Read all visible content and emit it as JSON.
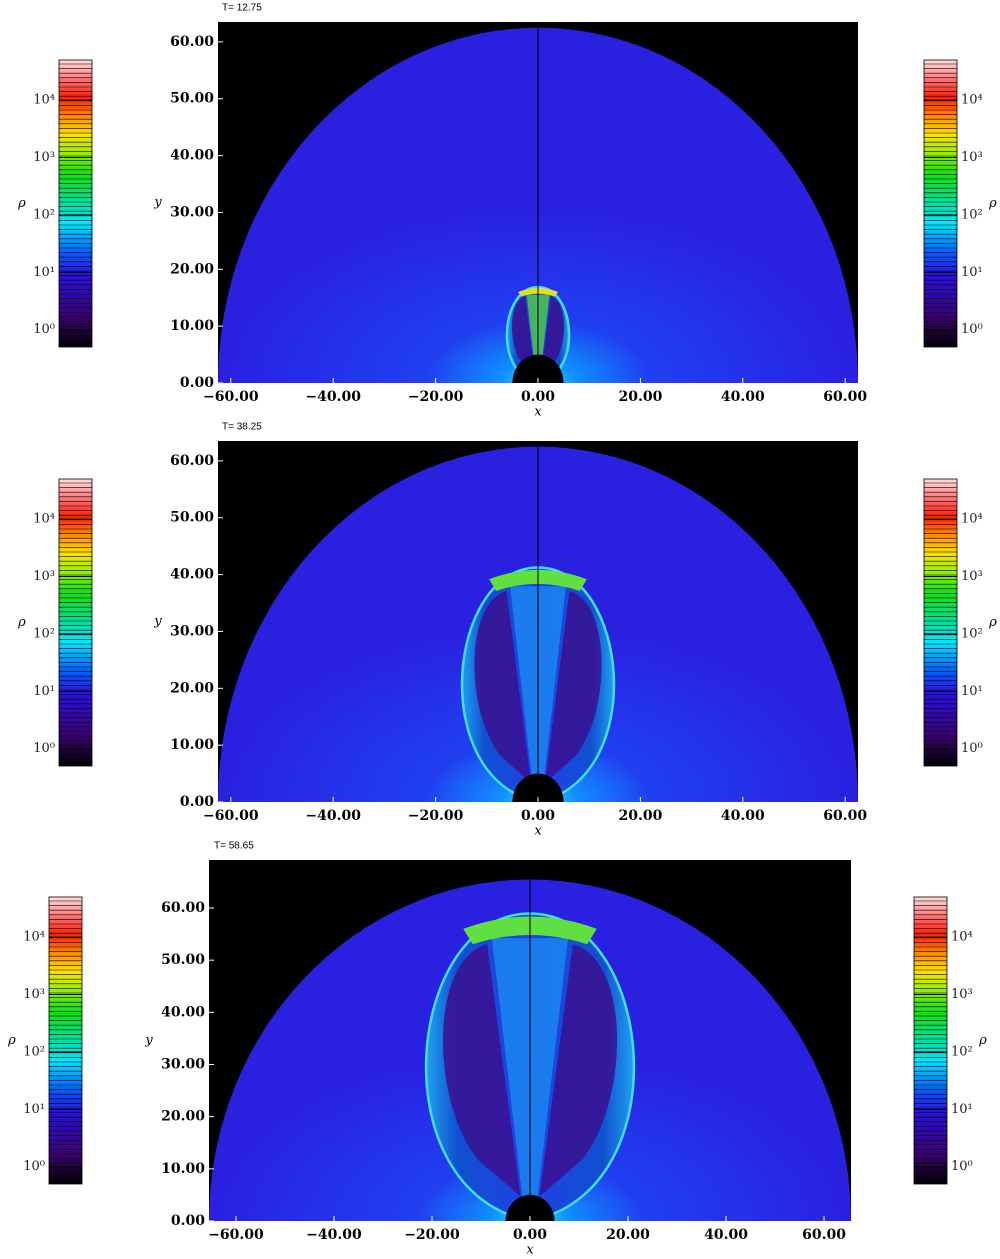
{
  "chart_data": [
    {
      "type": "heatmap",
      "title": "T= 12.75",
      "xlabel": "x",
      "ylabel": "y",
      "xlim": [
        -62.5,
        62.5
      ],
      "ylim": [
        0,
        63.5
      ],
      "xticks": [
        {
          "value": -60,
          "label": "−60.00"
        },
        {
          "value": -40,
          "label": "−40.00"
        },
        {
          "value": -20,
          "label": "−20.00"
        },
        {
          "value": 0,
          "label": "0.00"
        },
        {
          "value": 20,
          "label": "20.00"
        },
        {
          "value": 40,
          "label": "40.00"
        },
        {
          "value": 60,
          "label": "60.00"
        }
      ],
      "yticks": [
        {
          "value": 0,
          "label": "0.00"
        },
        {
          "value": 10,
          "label": "10.00"
        },
        {
          "value": 20,
          "label": "20.00"
        },
        {
          "value": 30,
          "label": "30.00"
        },
        {
          "value": 40,
          "label": "40.00"
        },
        {
          "value": 50,
          "label": "50.00"
        },
        {
          "value": 60,
          "label": "60.00"
        }
      ],
      "colorbar": {
        "label": "ρ",
        "scale": "log",
        "clim": [
          0.5,
          50000
        ],
        "ticks": [
          {
            "value": 1,
            "label": "10⁰"
          },
          {
            "value": 10,
            "label": "10¹"
          },
          {
            "value": 100,
            "label": "10²"
          },
          {
            "value": 1000,
            "label": "10³"
          },
          {
            "value": 10000,
            "label": "10⁴"
          }
        ]
      }
    },
    {
      "type": "heatmap",
      "title": "T= 38.25",
      "xlabel": "x",
      "ylabel": "y",
      "xlim": [
        -62.5,
        62.5
      ],
      "ylim": [
        0,
        63.5
      ],
      "xticks": [
        {
          "value": -60,
          "label": "−60.00"
        },
        {
          "value": -40,
          "label": "−40.00"
        },
        {
          "value": -20,
          "label": "−20.00"
        },
        {
          "value": 0,
          "label": "0.00"
        },
        {
          "value": 20,
          "label": "20.00"
        },
        {
          "value": 40,
          "label": "40.00"
        },
        {
          "value": 60,
          "label": "60.00"
        }
      ],
      "yticks": [
        {
          "value": 0,
          "label": "0.00"
        },
        {
          "value": 10,
          "label": "10.00"
        },
        {
          "value": 20,
          "label": "20.00"
        },
        {
          "value": 30,
          "label": "30.00"
        },
        {
          "value": 40,
          "label": "40.00"
        },
        {
          "value": 50,
          "label": "50.00"
        },
        {
          "value": 60,
          "label": "60.00"
        }
      ],
      "colorbar": {
        "label": "ρ",
        "scale": "log",
        "clim": [
          0.5,
          50000
        ],
        "ticks": [
          {
            "value": 1,
            "label": "10⁰"
          },
          {
            "value": 10,
            "label": "10¹"
          },
          {
            "value": 100,
            "label": "10²"
          },
          {
            "value": 1000,
            "label": "10³"
          },
          {
            "value": 10000,
            "label": "10⁴"
          }
        ]
      }
    },
    {
      "type": "heatmap",
      "title": "T= 58.65",
      "xlabel": "x",
      "ylabel": "y",
      "xlim": [
        -65.5,
        65.5
      ],
      "ylim": [
        0,
        69.2
      ],
      "xticks": [
        {
          "value": -60,
          "label": "−60.00"
        },
        {
          "value": -40,
          "label": "−40.00"
        },
        {
          "value": -20,
          "label": "−20.00"
        },
        {
          "value": 0,
          "label": "0.00"
        },
        {
          "value": 20,
          "label": "20.00"
        },
        {
          "value": 40,
          "label": "40.00"
        },
        {
          "value": 60,
          "label": "60.00"
        }
      ],
      "yticks": [
        {
          "value": 0,
          "label": "0.00"
        },
        {
          "value": 10,
          "label": "10.00"
        },
        {
          "value": 20,
          "label": "20.00"
        },
        {
          "value": 30,
          "label": "30.00"
        },
        {
          "value": 40,
          "label": "40.00"
        },
        {
          "value": 50,
          "label": "50.00"
        },
        {
          "value": 60,
          "label": "60.00"
        }
      ],
      "colorbar": {
        "label": "ρ",
        "scale": "log",
        "clim": [
          0.5,
          50000
        ],
        "ticks": [
          {
            "value": 1,
            "label": "10⁰"
          },
          {
            "value": 10,
            "label": "10¹"
          },
          {
            "value": 100,
            "label": "10²"
          },
          {
            "value": 1000,
            "label": "10³"
          },
          {
            "value": 10000,
            "label": "10⁴"
          }
        ]
      }
    }
  ]
}
